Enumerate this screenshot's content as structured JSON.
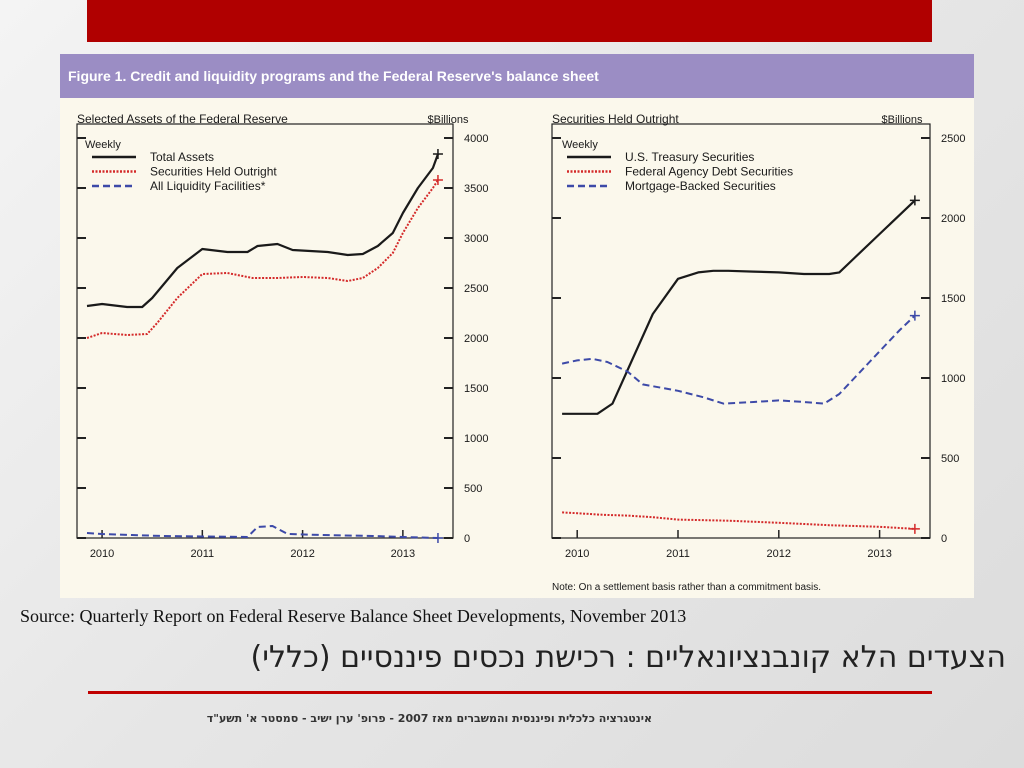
{
  "slide": {
    "source": "Source: Quarterly Report on Federal Reserve Balance Sheet Developments, November 2013",
    "title": "הצעדים הלא קונבנציונאליים : רכישת נכסים פיננסיים (כללי)",
    "footer": "אינטגרציה כלכלית ופיננסית והמשברים מאז 2007 - פרופ' ערן ישיב - סמסטר א' תשע\"ד",
    "colors": {
      "top_bar": "#b00000",
      "figure_header": "#9b8dc4",
      "figure_bg": "#fbf8ec",
      "rule": "#c00000"
    }
  },
  "figure": {
    "title": "Figure 1. Credit and liquidity programs and the Federal Reserve's balance sheet"
  },
  "chart_data": [
    {
      "type": "line",
      "title": "Selected Assets of the Federal Reserve",
      "unit_label": "$Billions",
      "frequency_label": "Weekly",
      "xlim": [
        2009.75,
        2013.5
      ],
      "ylim": [
        0,
        4000
      ],
      "x_ticks": [
        "2010",
        "2011",
        "2012",
        "2013"
      ],
      "y_ticks": [
        0,
        500,
        1000,
        1500,
        2000,
        2500,
        3000,
        3500,
        4000
      ],
      "legend_position": "top-left",
      "series": [
        {
          "name": "Total Assets",
          "color": "#1a1a1a",
          "style": "solid",
          "points": [
            [
              2009.85,
              2320
            ],
            [
              2010.0,
              2340
            ],
            [
              2010.25,
              2310
            ],
            [
              2010.4,
              2310
            ],
            [
              2010.5,
              2400
            ],
            [
              2010.75,
              2700
            ],
            [
              2011.0,
              2890
            ],
            [
              2011.25,
              2860
            ],
            [
              2011.45,
              2860
            ],
            [
              2011.55,
              2920
            ],
            [
              2011.75,
              2940
            ],
            [
              2011.9,
              2880
            ],
            [
              2012.25,
              2860
            ],
            [
              2012.45,
              2830
            ],
            [
              2012.6,
              2840
            ],
            [
              2012.75,
              2920
            ],
            [
              2012.9,
              3050
            ],
            [
              2013.0,
              3250
            ],
            [
              2013.15,
              3500
            ],
            [
              2013.3,
              3700
            ],
            [
              2013.35,
              3840
            ]
          ]
        },
        {
          "name": "Securities Held Outright",
          "color": "#d42a2a",
          "style": "dotted",
          "points": [
            [
              2009.85,
              2000
            ],
            [
              2010.0,
              2050
            ],
            [
              2010.25,
              2030
            ],
            [
              2010.45,
              2040
            ],
            [
              2010.55,
              2150
            ],
            [
              2010.75,
              2400
            ],
            [
              2011.0,
              2640
            ],
            [
              2011.25,
              2650
            ],
            [
              2011.5,
              2600
            ],
            [
              2011.75,
              2600
            ],
            [
              2012.0,
              2610
            ],
            [
              2012.25,
              2600
            ],
            [
              2012.45,
              2570
            ],
            [
              2012.6,
              2600
            ],
            [
              2012.75,
              2700
            ],
            [
              2012.9,
              2850
            ],
            [
              2013.0,
              3050
            ],
            [
              2013.15,
              3300
            ],
            [
              2013.3,
              3500
            ],
            [
              2013.35,
              3580
            ]
          ]
        },
        {
          "name": "All Liquidity Facilities*",
          "color": "#3d4aa8",
          "style": "dashed",
          "points": [
            [
              2009.85,
              50
            ],
            [
              2010.0,
              40
            ],
            [
              2010.3,
              30
            ],
            [
              2010.6,
              20
            ],
            [
              2011.0,
              15
            ],
            [
              2011.45,
              10
            ],
            [
              2011.55,
              110
            ],
            [
              2011.7,
              120
            ],
            [
              2011.85,
              40
            ],
            [
              2012.2,
              30
            ],
            [
              2012.7,
              20
            ],
            [
              2013.0,
              10
            ],
            [
              2013.35,
              0
            ]
          ]
        }
      ]
    },
    {
      "type": "line",
      "title": "Securities Held Outright",
      "unit_label": "$Billions",
      "frequency_label": "Weekly",
      "note": "Note: On a settlement basis rather than a commitment basis.",
      "xlim": [
        2009.75,
        2013.5
      ],
      "ylim": [
        0,
        2500
      ],
      "x_ticks": [
        "2010",
        "2011",
        "2012",
        "2013"
      ],
      "y_ticks": [
        0,
        500,
        1000,
        1500,
        2000,
        2500
      ],
      "legend_position": "top-left",
      "series": [
        {
          "name": "U.S. Treasury Securities",
          "color": "#1a1a1a",
          "style": "solid",
          "points": [
            [
              2009.85,
              776
            ],
            [
              2010.0,
              776
            ],
            [
              2010.2,
              776
            ],
            [
              2010.35,
              840
            ],
            [
              2010.5,
              1050
            ],
            [
              2010.75,
              1400
            ],
            [
              2011.0,
              1620
            ],
            [
              2011.2,
              1660
            ],
            [
              2011.35,
              1670
            ],
            [
              2011.5,
              1670
            ],
            [
              2011.75,
              1665
            ],
            [
              2012.0,
              1660
            ],
            [
              2012.25,
              1650
            ],
            [
              2012.5,
              1650
            ],
            [
              2012.6,
              1660
            ],
            [
              2012.75,
              1750
            ],
            [
              2013.0,
              1900
            ],
            [
              2013.2,
              2020
            ],
            [
              2013.35,
              2110
            ]
          ]
        },
        {
          "name": "Federal Agency Debt Securities",
          "color": "#d42a2a",
          "style": "dotted",
          "points": [
            [
              2009.85,
              160
            ],
            [
              2010.0,
              155
            ],
            [
              2010.25,
              145
            ],
            [
              2010.5,
              140
            ],
            [
              2010.75,
              130
            ],
            [
              2011.0,
              115
            ],
            [
              2011.5,
              108
            ],
            [
              2012.0,
              95
            ],
            [
              2012.5,
              80
            ],
            [
              2013.0,
              70
            ],
            [
              2013.35,
              57
            ]
          ]
        },
        {
          "name": "Mortgage-Backed Securities",
          "color": "#3d4aa8",
          "style": "dashed",
          "points": [
            [
              2009.85,
              1090
            ],
            [
              2010.0,
              1110
            ],
            [
              2010.15,
              1120
            ],
            [
              2010.3,
              1100
            ],
            [
              2010.5,
              1040
            ],
            [
              2010.65,
              960
            ],
            [
              2011.0,
              920
            ],
            [
              2011.25,
              880
            ],
            [
              2011.45,
              840
            ],
            [
              2011.75,
              850
            ],
            [
              2012.0,
              860
            ],
            [
              2012.25,
              850
            ],
            [
              2012.45,
              840
            ],
            [
              2012.6,
              900
            ],
            [
              2012.75,
              1000
            ],
            [
              2012.9,
              1100
            ],
            [
              2013.05,
              1200
            ],
            [
              2013.2,
              1300
            ],
            [
              2013.35,
              1390
            ]
          ]
        }
      ]
    }
  ]
}
